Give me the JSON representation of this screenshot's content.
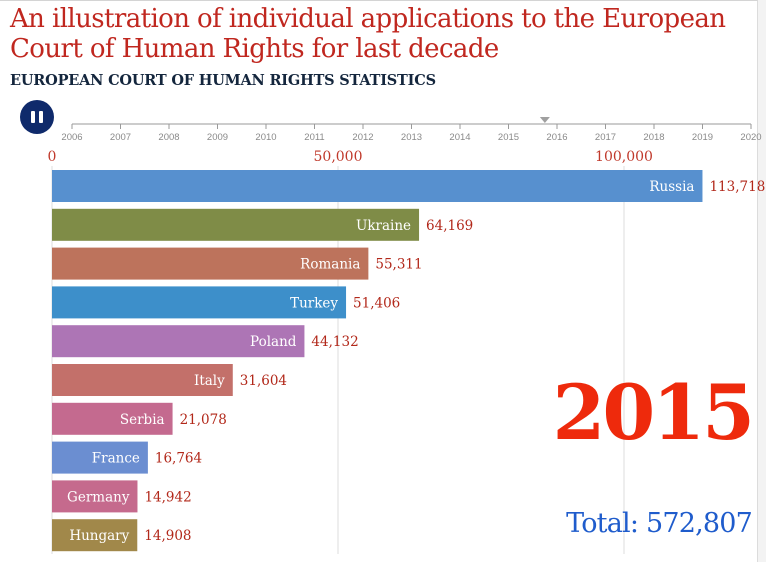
{
  "header": {
    "title": "An illustration of individual applications to the European Court of Human Rights for last decade",
    "subtitle": "EUROPEAN COURT OF HUMAN RIGHTS STATISTICS"
  },
  "controls": {
    "play_pause_icon": "pause-icon",
    "timeline_years": [
      "2006",
      "2007",
      "2008",
      "2009",
      "2010",
      "2011",
      "2012",
      "2013",
      "2014",
      "2015",
      "2016",
      "2017",
      "2018",
      "2019",
      "2020"
    ],
    "timeline_current": 2015.75
  },
  "chart_data": {
    "type": "bar",
    "orientation": "horizontal",
    "year": "2015",
    "total_label": "Total: 572,807",
    "xlim": [
      0,
      123000
    ],
    "x_ticks": [
      0,
      50000,
      100000
    ],
    "x_tick_labels": [
      "0",
      "50,000",
      "100,000"
    ],
    "grid": true,
    "categories": [
      "Russia",
      "Ukraine",
      "Romania",
      "Turkey",
      "Poland",
      "Italy",
      "Serbia",
      "France",
      "Germany",
      "Hungary"
    ],
    "values": [
      113718,
      64169,
      55311,
      51406,
      44132,
      31604,
      21078,
      16764,
      14942,
      14908
    ],
    "value_labels": [
      "113,718",
      "64,169",
      "55,311",
      "51,406",
      "44,132",
      "31,604",
      "21,078",
      "16,764",
      "14,942",
      "14,908"
    ],
    "colors": [
      "#5790cf",
      "#7f8c47",
      "#bd735c",
      "#3d8fca",
      "#ad75b5",
      "#c3706a",
      "#c46a8f",
      "#6b8ed1",
      "#c56a8d",
      "#a1884a"
    ]
  },
  "theme": {
    "title_color": "#c0271f",
    "value_label_color": "#b2281a",
    "tick_label_color": "#c0392b",
    "year_color": "#ee2a0c",
    "total_color": "#1f5ccc"
  }
}
